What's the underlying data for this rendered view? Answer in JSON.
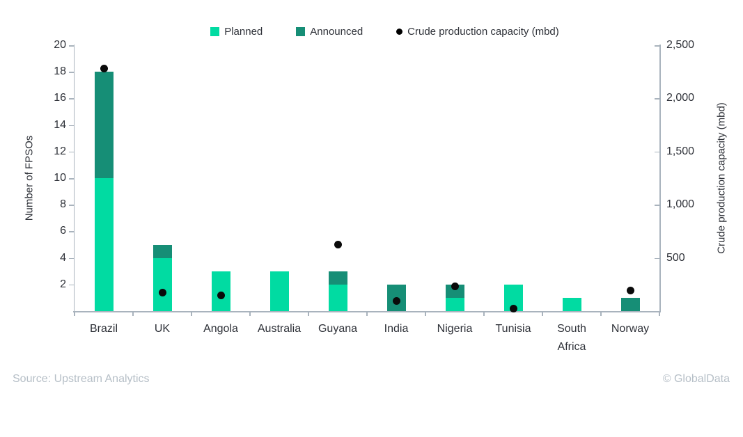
{
  "legend": {
    "items": [
      {
        "label": "Planned",
        "marker": "square",
        "color": "#01dba2"
      },
      {
        "label": "Announced",
        "marker": "square",
        "color": "#168e76"
      },
      {
        "label": "Crude production capacity (mbd)",
        "marker": "dot",
        "color": "#000000"
      }
    ]
  },
  "chart_data": {
    "type": "bar",
    "subtype": "stacked-bars-with-scatter-overlay",
    "title": "",
    "categories": [
      "Brazil",
      "UK",
      "Angola",
      "Australia",
      "Guyana",
      "India",
      "Nigeria",
      "Tunisia",
      "South Africa",
      "Norway"
    ],
    "series": [
      {
        "name": "Planned",
        "type": "bar",
        "stack": "fpso",
        "color": "#01dba2",
        "values": [
          10,
          4,
          3,
          3,
          2,
          0,
          1,
          2,
          1,
          0
        ]
      },
      {
        "name": "Announced",
        "type": "bar",
        "stack": "fpso",
        "color": "#168e76",
        "values": [
          8,
          1,
          0,
          0,
          1,
          2,
          1,
          0,
          0,
          1
        ]
      },
      {
        "name": "Crude production capacity (mbd)",
        "type": "scatter",
        "y_axis": "right",
        "color": "#0a0a0a",
        "values": [
          2280,
          175,
          150,
          null,
          625,
          95,
          230,
          20,
          null,
          190
        ]
      }
    ],
    "left_axis": {
      "label": "Number of FPSOs",
      "min": 0,
      "max": 20,
      "tick_step": 2,
      "tick_values": [
        2,
        4,
        6,
        8,
        10,
        12,
        14,
        16,
        18,
        20
      ],
      "tick_labels": [
        "2",
        "4",
        "6",
        "8",
        "10",
        "12",
        "14",
        "16",
        "18",
        "20"
      ]
    },
    "right_axis": {
      "label": "Crude production capacity (mbd)",
      "min": 0,
      "max": 2500,
      "tick_step": 500,
      "tick_values": [
        500,
        1000,
        1500,
        2000,
        2500
      ],
      "tick_labels": [
        "500",
        "1,000",
        "1,500",
        "2,000",
        "2,500"
      ]
    },
    "grid": false,
    "legend_position": "top"
  },
  "footer": {
    "source": "Source: Upstream Analytics",
    "copyright": "© GlobalData"
  },
  "colors": {
    "planned": "#01dba2",
    "announced": "#168e76",
    "scatter_dot": "#0a0a0a",
    "axis_line": "#a9b3bd",
    "text": "#2e3138",
    "muted_text": "#b6bfc7"
  }
}
